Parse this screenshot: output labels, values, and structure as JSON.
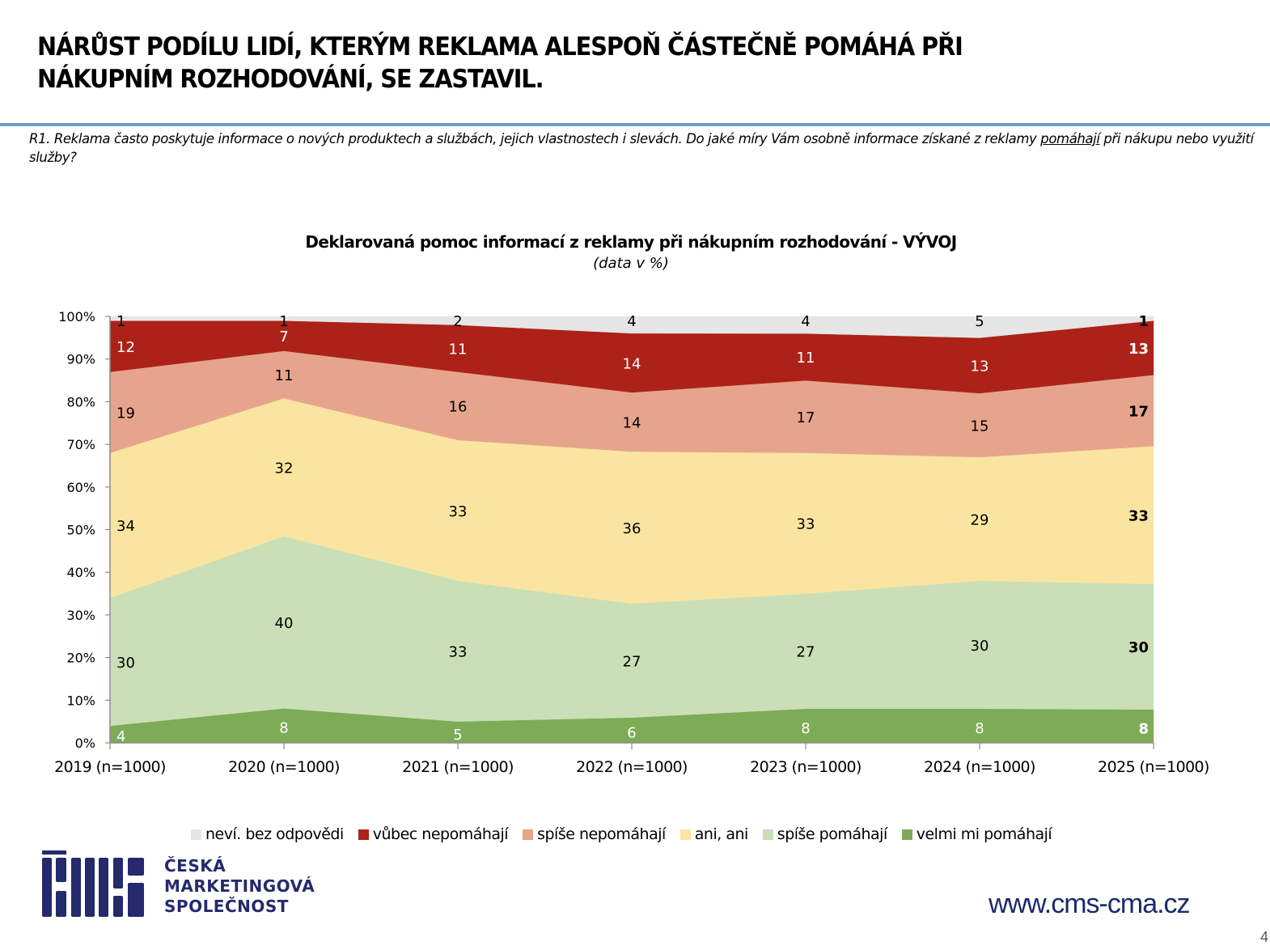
{
  "header": {
    "title_line1": "NÁRŮST PODÍLU LIDÍ, KTERÝM REKLAMA ALESPOŇ ČÁSTEČNĚ POMÁHÁ PŘI",
    "title_line2": "NÁKUPNÍM ROZHODOVÁNÍ, SE ZASTAVIL.",
    "rule_color": "#6f9bd1"
  },
  "question": {
    "text_before": "R1. Reklama často poskytuje informace o nových produktech a službách, jejich vlastnostech i slevách. Do jaké míry Vám osobně informace získané z reklamy ",
    "underlined": "pomáhají",
    "text_after": " při nákupu nebo využití služby?"
  },
  "chart_data": {
    "type": "area",
    "stacked": "percent",
    "title": "Deklarovaná pomoc informací z reklamy při nákupním rozhodování - VÝVOJ",
    "subtitle": "(data v %)",
    "xlabel": "",
    "ylabel": "",
    "ylim": [
      0,
      100
    ],
    "yticks": [
      "0%",
      "10%",
      "20%",
      "30%",
      "40%",
      "50%",
      "60%",
      "70%",
      "80%",
      "90%",
      "100%"
    ],
    "categories": [
      "2019 (n=1000)",
      "2020 (n=1000)",
      "2021 (n=1000)",
      "2022 (n=1000)",
      "2023 (n=1000)",
      "2024 (n=1000)",
      "2025 (n=1000)"
    ],
    "grid": false,
    "legend_position": "bottom",
    "highlight_last_bold": true,
    "series": [
      {
        "name": "velmi mi pomáhají",
        "color": "#7eab55",
        "label_color": "#ffffff",
        "values": [
          4,
          8,
          5,
          6,
          8,
          8,
          8
        ],
        "labels": [
          "4",
          "8",
          "5",
          "6",
          "8",
          "8",
          "8"
        ]
      },
      {
        "name": "spíše pomáhají",
        "color": "#cadfb8",
        "label_color": "#000000",
        "values": [
          30,
          40,
          33,
          27,
          27,
          30,
          30
        ],
        "labels": [
          "30",
          "40",
          "33",
          "27",
          "27",
          "30",
          "30"
        ]
      },
      {
        "name": "ani, ani",
        "color": "#fae5a0",
        "label_color": "#000000",
        "values": [
          34,
          32,
          33,
          36,
          33,
          29,
          33
        ],
        "labels": [
          "34",
          "32",
          "33",
          "36",
          "33",
          "29",
          "33"
        ]
      },
      {
        "name": "spíše nepomáhají",
        "color": "#e6a48d",
        "label_color": "#000000",
        "values": [
          19,
          11,
          16,
          14,
          17,
          15,
          17
        ],
        "labels": [
          "19",
          "11",
          "16",
          "14",
          "17",
          "15",
          "17"
        ]
      },
      {
        "name": "vůbec nepomáhají",
        "color": "#ac2218",
        "label_color": "#ffffff",
        "values": [
          12,
          7,
          11,
          14,
          11,
          13,
          13
        ],
        "labels": [
          "12",
          "7",
          "11",
          "14",
          "11",
          "13",
          "13"
        ]
      },
      {
        "name": "neví. bez odpovědi",
        "color": "#e6e6e6",
        "label_color": "#000000",
        "values": [
          1,
          1,
          2,
          4,
          4,
          5,
          1
        ],
        "labels": [
          "1",
          "1",
          "2",
          "4",
          "4",
          "5",
          "1"
        ]
      }
    ]
  },
  "legend": {
    "items": [
      {
        "label": "neví. bez odpovědi",
        "color": "#e6e6e6"
      },
      {
        "label": "vůbec nepomáhají",
        "color": "#ac2218"
      },
      {
        "label": "spíše nepomáhají",
        "color": "#e6a48d"
      },
      {
        "label": "ani, ani",
        "color": "#fae5a0"
      },
      {
        "label": "spíše pomáhají",
        "color": "#cadfb8"
      },
      {
        "label": "velmi mi pomáhají",
        "color": "#7eab55"
      }
    ]
  },
  "footer": {
    "logo_line1": "ČESKÁ",
    "logo_line2": "MARKETINGOVÁ",
    "logo_line3": "SPOLEČNOST",
    "logo_color": "#242a6b",
    "url": "www.cms-cma.cz",
    "page_number": "4"
  }
}
